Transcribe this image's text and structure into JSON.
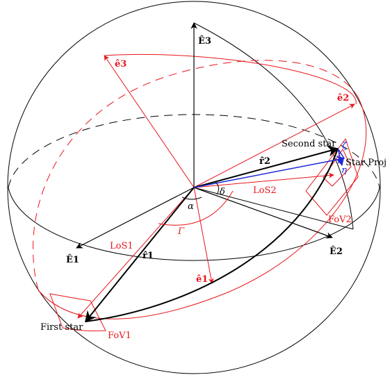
{
  "colors": {
    "black": "#000000",
    "red": "#e8141b",
    "blue": "#1e28d8"
  },
  "labels": {
    "E1": "Ê1",
    "E2": "Ê2",
    "E3": "Ê3",
    "e1": "ê1",
    "e2": "ê2",
    "e3": "ê3",
    "r1": "r̂1",
    "r2": "r̂2",
    "alpha": "α",
    "delta": "δ",
    "Gamma": "Γ",
    "zeta": "ζ",
    "eta": "η",
    "LoS1": "LoS1",
    "LoS2": "LoS2",
    "FoV1": "FoV1",
    "FoV2": "FoV2",
    "first_star": "First star",
    "second_star": "Second star",
    "star_proj": "Star Proj"
  }
}
